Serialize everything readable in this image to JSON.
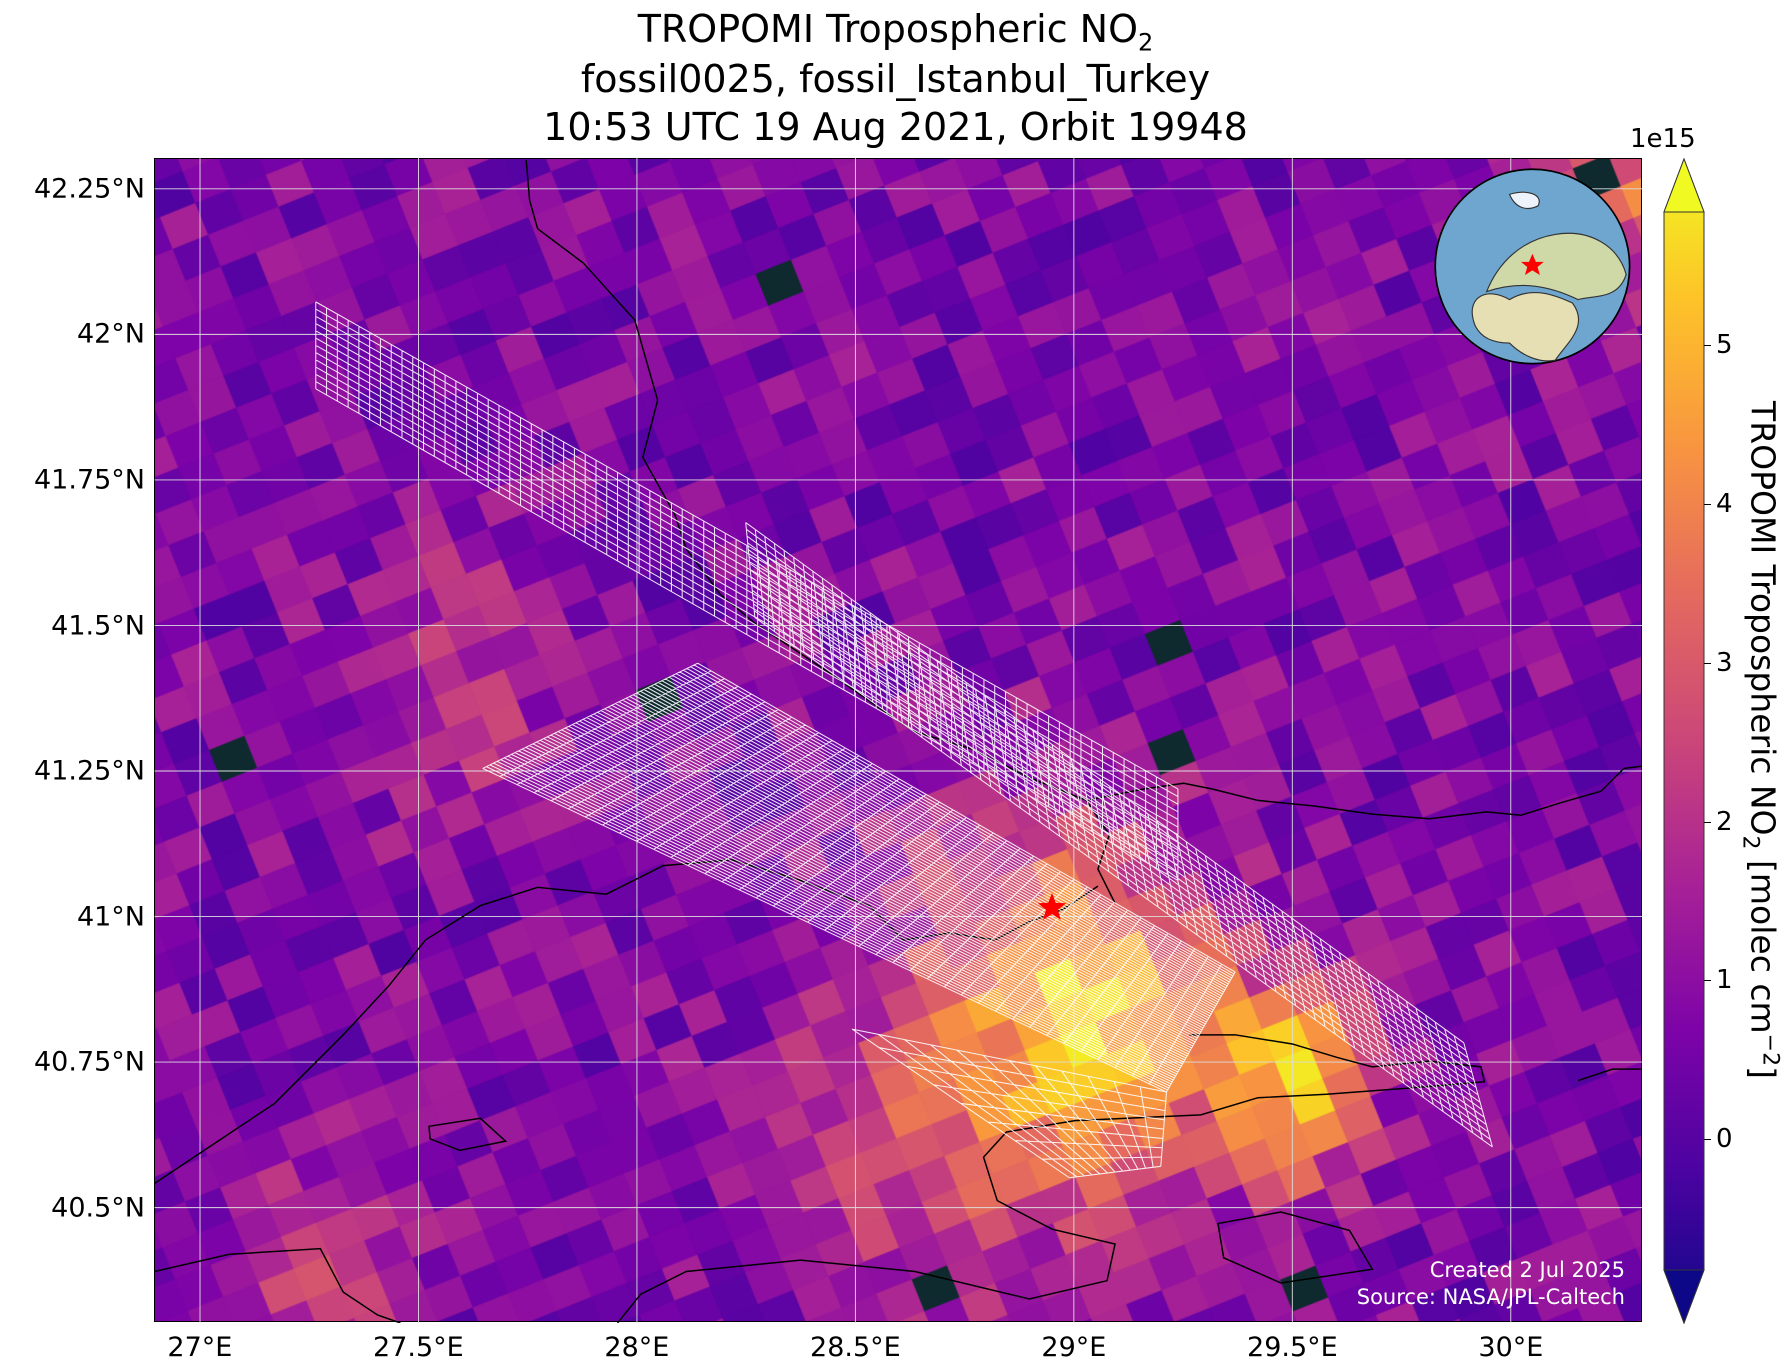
{
  "title": {
    "line1_main": "TROPOMI Tropospheric NO",
    "line1_sub": "2",
    "line2": "fossil0025, fossil_Istanbul_Turkey",
    "line3": "10:53 UTC 19 Aug 2021, Orbit 19948"
  },
  "map": {
    "lon_range": [
      26.895,
      30.3
    ],
    "lat_range": [
      40.304,
      42.303
    ],
    "target": {
      "name": "Istanbul",
      "lon": 28.95,
      "lat": 41.015,
      "marker_color": "#ff0000"
    },
    "lon_ticks": [
      {
        "v": 27,
        "label": "27°E"
      },
      {
        "v": 27.5,
        "label": "27.5°E"
      },
      {
        "v": 28,
        "label": "28°E"
      },
      {
        "v": 28.5,
        "label": "28.5°E"
      },
      {
        "v": 29,
        "label": "29°E"
      },
      {
        "v": 29.5,
        "label": "29.5°E"
      },
      {
        "v": 30,
        "label": "30°E"
      }
    ],
    "lat_ticks": [
      {
        "v": 42.25,
        "label": "42.25°N"
      },
      {
        "v": 42,
        "label": "42°N"
      },
      {
        "v": 41.75,
        "label": "41.75°N"
      },
      {
        "v": 41.5,
        "label": "41.5°N"
      },
      {
        "v": 41.25,
        "label": "41.25°N"
      },
      {
        "v": 41,
        "label": "41°N"
      },
      {
        "v": 40.75,
        "label": "40.75°N"
      },
      {
        "v": 40.5,
        "label": "40.5°N"
      }
    ],
    "credit_created": "Created 2 Jul 2025",
    "credit_source": "Source: NASA/JPL-Caltech"
  },
  "colorbar": {
    "multiplier": "1e15",
    "label_main": "TROPOMI Tropospheric NO",
    "label_sub": "2",
    "label_unit": " [molec cm",
    "label_exp": "−2",
    "label_end": "]",
    "vmin": -0.8,
    "vmax": 5.84,
    "colormap": "plasma",
    "ticks": [
      {
        "v": 0,
        "label": "0"
      },
      {
        "v": 1,
        "label": "1"
      },
      {
        "v": 2,
        "label": "2"
      },
      {
        "v": 3,
        "label": "3"
      },
      {
        "v": 4,
        "label": "4"
      },
      {
        "v": 5,
        "label": "5"
      }
    ],
    "extend": "both"
  },
  "colors": {
    "nodata": "#0e2a2e",
    "swath_outline": "#ffffff",
    "coast": "#000000"
  }
}
